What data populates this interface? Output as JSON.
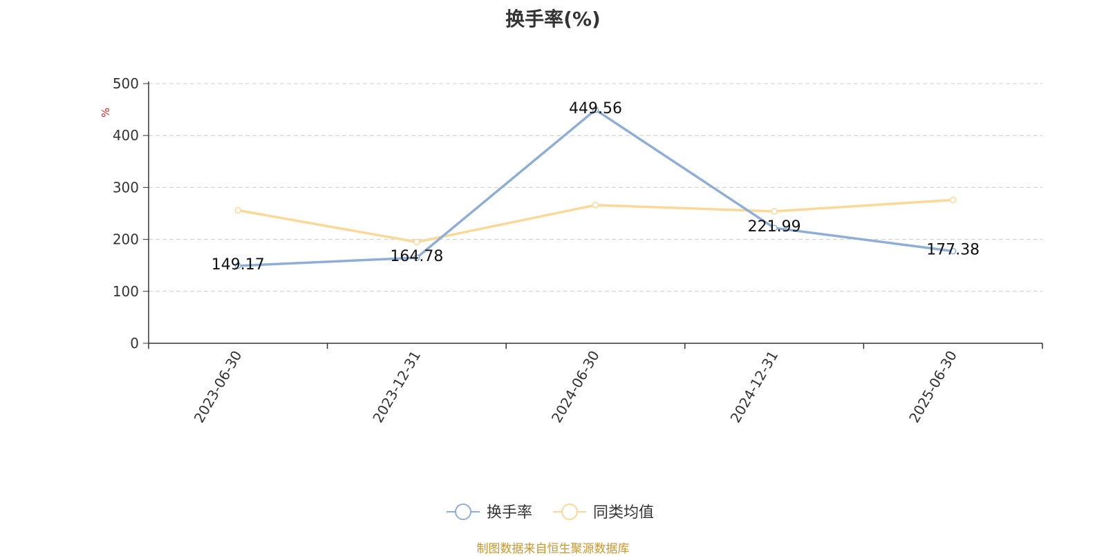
{
  "chart_data": {
    "type": "line",
    "title": "换手率(%)",
    "ylabel": "%",
    "xlabel": "",
    "categories": [
      "2023-06-30",
      "2023-12-31",
      "2024-06-30",
      "2024-12-31",
      "2025-06-30"
    ],
    "ylim": [
      0,
      500
    ],
    "yticks": [
      0,
      100,
      200,
      300,
      400,
      500
    ],
    "grid": true,
    "legend_position": "bottom",
    "series": [
      {
        "name": "换手率",
        "color": "#8eaed8",
        "values": [
          149.17,
          164.78,
          449.56,
          221.99,
          177.38
        ],
        "show_labels": true
      },
      {
        "name": "同类均值",
        "color": "#fbd898",
        "values": [
          256,
          195,
          266,
          254,
          276
        ],
        "show_labels": false
      }
    ]
  },
  "footer": {
    "source": "制图数据来自恒生聚源数据库"
  }
}
